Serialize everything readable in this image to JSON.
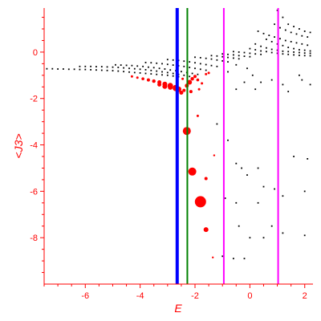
{
  "chart_data": {
    "type": "scatter",
    "xlabel": "E",
    "ylabel": "<J3>",
    "xlim": [
      -7.5,
      2.3
    ],
    "ylim": [
      -10.0,
      1.9
    ],
    "xticks": [
      -6,
      -4,
      -2,
      0,
      2
    ],
    "yticks": [
      0,
      -2,
      -4,
      -6,
      -8
    ],
    "grid": false,
    "colors": {
      "axis": "#ff0000",
      "black_points": "#000000",
      "red_points": "#ff0000",
      "line_blue": "#0000ff",
      "line_green": "#008000",
      "line_magenta": "#ff00ff"
    },
    "vertical_lines": [
      {
        "x": -2.65,
        "color": "#0000ff"
      },
      {
        "x": -2.28,
        "color": "#008000"
      },
      {
        "x": -0.95,
        "color": "#ff00ff"
      },
      {
        "x": 1.03,
        "color": "#ff00ff"
      }
    ],
    "series": [
      {
        "color": "#000000",
        "marker": "dot",
        "points": [
          [
            -7.4,
            -0.72
          ],
          [
            -7.2,
            -0.72
          ],
          [
            -7.0,
            -0.73
          ],
          [
            -6.8,
            -0.73
          ],
          [
            -6.6,
            -0.74
          ],
          [
            -6.4,
            -0.74
          ],
          [
            -6.2,
            -0.75
          ],
          [
            -6.0,
            -0.75
          ],
          [
            -5.8,
            -0.76
          ],
          [
            -5.6,
            -0.77
          ],
          [
            -5.4,
            -0.78
          ],
          [
            -5.2,
            -0.79
          ],
          [
            -5.0,
            -0.8
          ],
          [
            -4.8,
            -0.82
          ],
          [
            -4.6,
            -0.84
          ],
          [
            -4.4,
            -0.86
          ],
          [
            -4.2,
            -0.88
          ],
          [
            -4.0,
            -0.9
          ],
          [
            -3.8,
            -0.92
          ],
          [
            -3.6,
            -0.94
          ],
          [
            -3.4,
            -0.96
          ],
          [
            -3.2,
            -0.98
          ],
          [
            -3.0,
            -1.0
          ],
          [
            -2.8,
            -1.03
          ],
          [
            -2.6,
            -1.06
          ],
          [
            -6.2,
            -0.62
          ],
          [
            -6.0,
            -0.62
          ],
          [
            -5.8,
            -0.62
          ],
          [
            -5.6,
            -0.63
          ],
          [
            -5.4,
            -0.63
          ],
          [
            -5.2,
            -0.64
          ],
          [
            -5.0,
            -0.65
          ],
          [
            -4.8,
            -0.66
          ],
          [
            -4.6,
            -0.68
          ],
          [
            -4.4,
            -0.7
          ],
          [
            -4.2,
            -0.72
          ],
          [
            -4.0,
            -0.74
          ],
          [
            -3.8,
            -0.76
          ],
          [
            -3.6,
            -0.79
          ],
          [
            -3.4,
            -0.82
          ],
          [
            -3.2,
            -0.85
          ],
          [
            -3.0,
            -0.88
          ],
          [
            -2.8,
            -0.92
          ],
          [
            -2.6,
            -0.96
          ],
          [
            -2.4,
            -1.0
          ],
          [
            -2.2,
            -1.05
          ],
          [
            -4.9,
            -0.55
          ],
          [
            -4.7,
            -0.56
          ],
          [
            -4.5,
            -0.57
          ],
          [
            -4.3,
            -0.58
          ],
          [
            -4.1,
            -0.6
          ],
          [
            -3.9,
            -0.62
          ],
          [
            -3.7,
            -0.65
          ],
          [
            -3.5,
            -0.67
          ],
          [
            -3.3,
            -0.7
          ],
          [
            -3.1,
            -0.73
          ],
          [
            -2.9,
            -0.77
          ],
          [
            -2.7,
            -0.8
          ],
          [
            -2.5,
            -0.84
          ],
          [
            -2.3,
            -0.88
          ],
          [
            -2.1,
            -0.92
          ],
          [
            -1.9,
            -0.96
          ],
          [
            -3.8,
            -0.45
          ],
          [
            -3.6,
            -0.46
          ],
          [
            -3.4,
            -0.48
          ],
          [
            -3.2,
            -0.5
          ],
          [
            -3.0,
            -0.53
          ],
          [
            -2.8,
            -0.56
          ],
          [
            -2.6,
            -0.59
          ],
          [
            -2.4,
            -0.62
          ],
          [
            -2.2,
            -0.66
          ],
          [
            -2.0,
            -0.7
          ],
          [
            -1.8,
            -0.74
          ],
          [
            -1.6,
            -0.78
          ],
          [
            -3.0,
            -0.32
          ],
          [
            -2.8,
            -0.34
          ],
          [
            -2.6,
            -0.36
          ],
          [
            -2.4,
            -0.39
          ],
          [
            -2.2,
            -0.42
          ],
          [
            -2.0,
            -0.46
          ],
          [
            -1.8,
            -0.5
          ],
          [
            -1.6,
            -0.54
          ],
          [
            -1.4,
            -0.58
          ],
          [
            -1.2,
            -0.62
          ],
          [
            -2.0,
            -0.22
          ],
          [
            -1.8,
            -0.24
          ],
          [
            -1.6,
            -0.27
          ],
          [
            -1.4,
            -0.3
          ],
          [
            -1.2,
            -0.34
          ],
          [
            -1.0,
            -0.38
          ],
          [
            -0.8,
            -0.42
          ],
          [
            -1.4,
            -0.15
          ],
          [
            -1.2,
            -0.17
          ],
          [
            -1.0,
            -0.2
          ],
          [
            -0.8,
            -0.23
          ],
          [
            -0.6,
            -0.26
          ],
          [
            -0.4,
            -0.29
          ],
          [
            -1.0,
            -0.08
          ],
          [
            -0.8,
            -0.1
          ],
          [
            -0.6,
            -0.12
          ],
          [
            -0.4,
            -0.15
          ],
          [
            -0.2,
            -0.18
          ],
          [
            0.0,
            -0.2
          ],
          [
            -0.6,
            0.02
          ],
          [
            -0.4,
            0.0
          ],
          [
            -0.2,
            -0.02
          ],
          [
            0.0,
            -0.05
          ],
          [
            0.2,
            -0.08
          ],
          [
            0.4,
            -0.1
          ],
          [
            0.0,
            0.15
          ],
          [
            0.2,
            0.1
          ],
          [
            0.4,
            0.05
          ],
          [
            0.6,
            0.02
          ],
          [
            0.8,
            -0.02
          ],
          [
            1.0,
            -0.05
          ],
          [
            1.2,
            -0.08
          ],
          [
            1.4,
            -0.1
          ],
          [
            1.6,
            -0.12
          ],
          [
            1.8,
            -0.14
          ],
          [
            2.0,
            -0.15
          ],
          [
            2.2,
            -0.16
          ],
          [
            0.2,
            0.35
          ],
          [
            0.4,
            0.25
          ],
          [
            0.6,
            0.18
          ],
          [
            0.8,
            0.12
          ],
          [
            1.0,
            0.08
          ],
          [
            1.2,
            0.04
          ],
          [
            1.4,
            0.02
          ],
          [
            1.6,
            0.0
          ],
          [
            1.8,
            -0.02
          ],
          [
            2.0,
            -0.04
          ],
          [
            2.2,
            -0.05
          ],
          [
            0.6,
            0.55
          ],
          [
            0.8,
            0.45
          ],
          [
            1.0,
            0.35
          ],
          [
            1.2,
            0.28
          ],
          [
            1.4,
            0.2
          ],
          [
            1.6,
            0.15
          ],
          [
            1.8,
            0.1
          ],
          [
            2.0,
            0.08
          ],
          [
            2.2,
            0.05
          ],
          [
            0.3,
            0.9
          ],
          [
            0.5,
            0.8
          ],
          [
            0.7,
            0.72
          ],
          [
            0.9,
            0.65
          ],
          [
            1.1,
            0.58
          ],
          [
            1.3,
            0.5
          ],
          [
            1.5,
            0.45
          ],
          [
            1.7,
            0.4
          ],
          [
            1.9,
            0.35
          ],
          [
            2.1,
            0.3
          ],
          [
            0.9,
            1.2
          ],
          [
            1.1,
            1.05
          ],
          [
            1.3,
            0.95
          ],
          [
            1.5,
            0.85
          ],
          [
            1.7,
            0.78
          ],
          [
            1.9,
            0.7
          ],
          [
            2.1,
            0.65
          ],
          [
            1.0,
            1.8
          ],
          [
            1.2,
            1.5
          ],
          [
            1.4,
            1.2
          ],
          [
            1.6,
            1.1
          ],
          [
            1.8,
            1.0
          ],
          [
            2.0,
            0.9
          ],
          [
            2.2,
            0.85
          ],
          [
            -0.5,
            -0.55
          ],
          [
            -0.8,
            -0.85
          ],
          [
            -0.1,
            -0.7
          ],
          [
            0.1,
            -1.0
          ],
          [
            0.4,
            -1.3
          ],
          [
            0.8,
            -1.2
          ],
          [
            1.2,
            -1.4
          ],
          [
            1.8,
            -1.0
          ],
          [
            2.2,
            -1.4
          ],
          [
            -0.2,
            -1.3
          ],
          [
            0.2,
            -1.6
          ],
          [
            -0.5,
            -1.6
          ],
          [
            1.4,
            -1.7
          ],
          [
            1.9,
            -1.2
          ],
          [
            -1.2,
            -3.1
          ],
          [
            -0.8,
            -3.8
          ],
          [
            -0.5,
            -4.8
          ],
          [
            -0.3,
            -5.0
          ],
          [
            0.3,
            -5.0
          ],
          [
            1.6,
            -4.5
          ],
          [
            2.1,
            -4.6
          ],
          [
            -0.1,
            -5.3
          ],
          [
            0.5,
            -5.8
          ],
          [
            0.9,
            -5.9
          ],
          [
            2.0,
            -6.0
          ],
          [
            -0.9,
            -6.3
          ],
          [
            -0.5,
            -6.5
          ],
          [
            0.3,
            -6.5
          ],
          [
            1.2,
            -6.2
          ],
          [
            -1.0,
            -8.8
          ],
          [
            -0.6,
            -8.9
          ],
          [
            -0.2,
            -8.9
          ],
          [
            0.0,
            -8.0
          ],
          [
            0.5,
            -8.0
          ],
          [
            1.2,
            -7.8
          ],
          [
            2.0,
            -7.9
          ],
          [
            0.8,
            -7.5
          ],
          [
            -0.4,
            -7.5
          ]
        ]
      },
      {
        "color": "#ff0000",
        "marker": "circle",
        "points": [
          [
            -4.3,
            -1.05,
            1.5
          ],
          [
            -4.1,
            -1.1,
            1.5
          ],
          [
            -3.9,
            -1.15,
            1.8
          ],
          [
            -3.7,
            -1.2,
            2.0
          ],
          [
            -3.5,
            -1.25,
            2.2
          ],
          [
            -3.3,
            -1.3,
            2.5
          ],
          [
            -3.1,
            -1.38,
            3.0
          ],
          [
            -2.9,
            -1.45,
            3.5
          ],
          [
            -2.7,
            -1.55,
            4.0
          ],
          [
            -3.3,
            -1.4,
            2.5
          ],
          [
            -3.1,
            -1.48,
            3.0
          ],
          [
            -2.9,
            -1.52,
            3.0
          ],
          [
            -2.6,
            -1.6,
            3.5
          ],
          [
            -2.5,
            -1.75,
            2.5
          ],
          [
            -2.4,
            -1.65,
            2.0
          ],
          [
            -2.3,
            -1.45,
            2.5
          ],
          [
            -2.2,
            -1.3,
            3.0
          ],
          [
            -2.1,
            -1.15,
            2.2
          ],
          [
            -2.0,
            -1.05,
            2.0
          ],
          [
            -1.9,
            -1.2,
            1.8
          ],
          [
            -1.75,
            -1.35,
            1.5
          ],
          [
            -1.6,
            -0.95,
            1.5
          ],
          [
            -1.5,
            -0.9,
            1.5
          ],
          [
            -2.15,
            -1.7,
            2.0
          ],
          [
            -1.85,
            -1.6,
            1.5
          ],
          [
            -2.45,
            -1.15,
            1.5
          ],
          [
            -2.3,
            -3.4,
            5.0
          ],
          [
            -2.1,
            -5.15,
            5.0
          ],
          [
            -1.8,
            -6.45,
            7.0
          ],
          [
            -1.6,
            -7.65,
            3.0
          ],
          [
            -1.6,
            -5.45,
            2.0
          ],
          [
            -1.9,
            -2.75,
            1.5
          ],
          [
            -1.3,
            -4.45,
            1.2
          ],
          [
            -1.35,
            -8.85,
            1.2
          ]
        ]
      }
    ]
  }
}
